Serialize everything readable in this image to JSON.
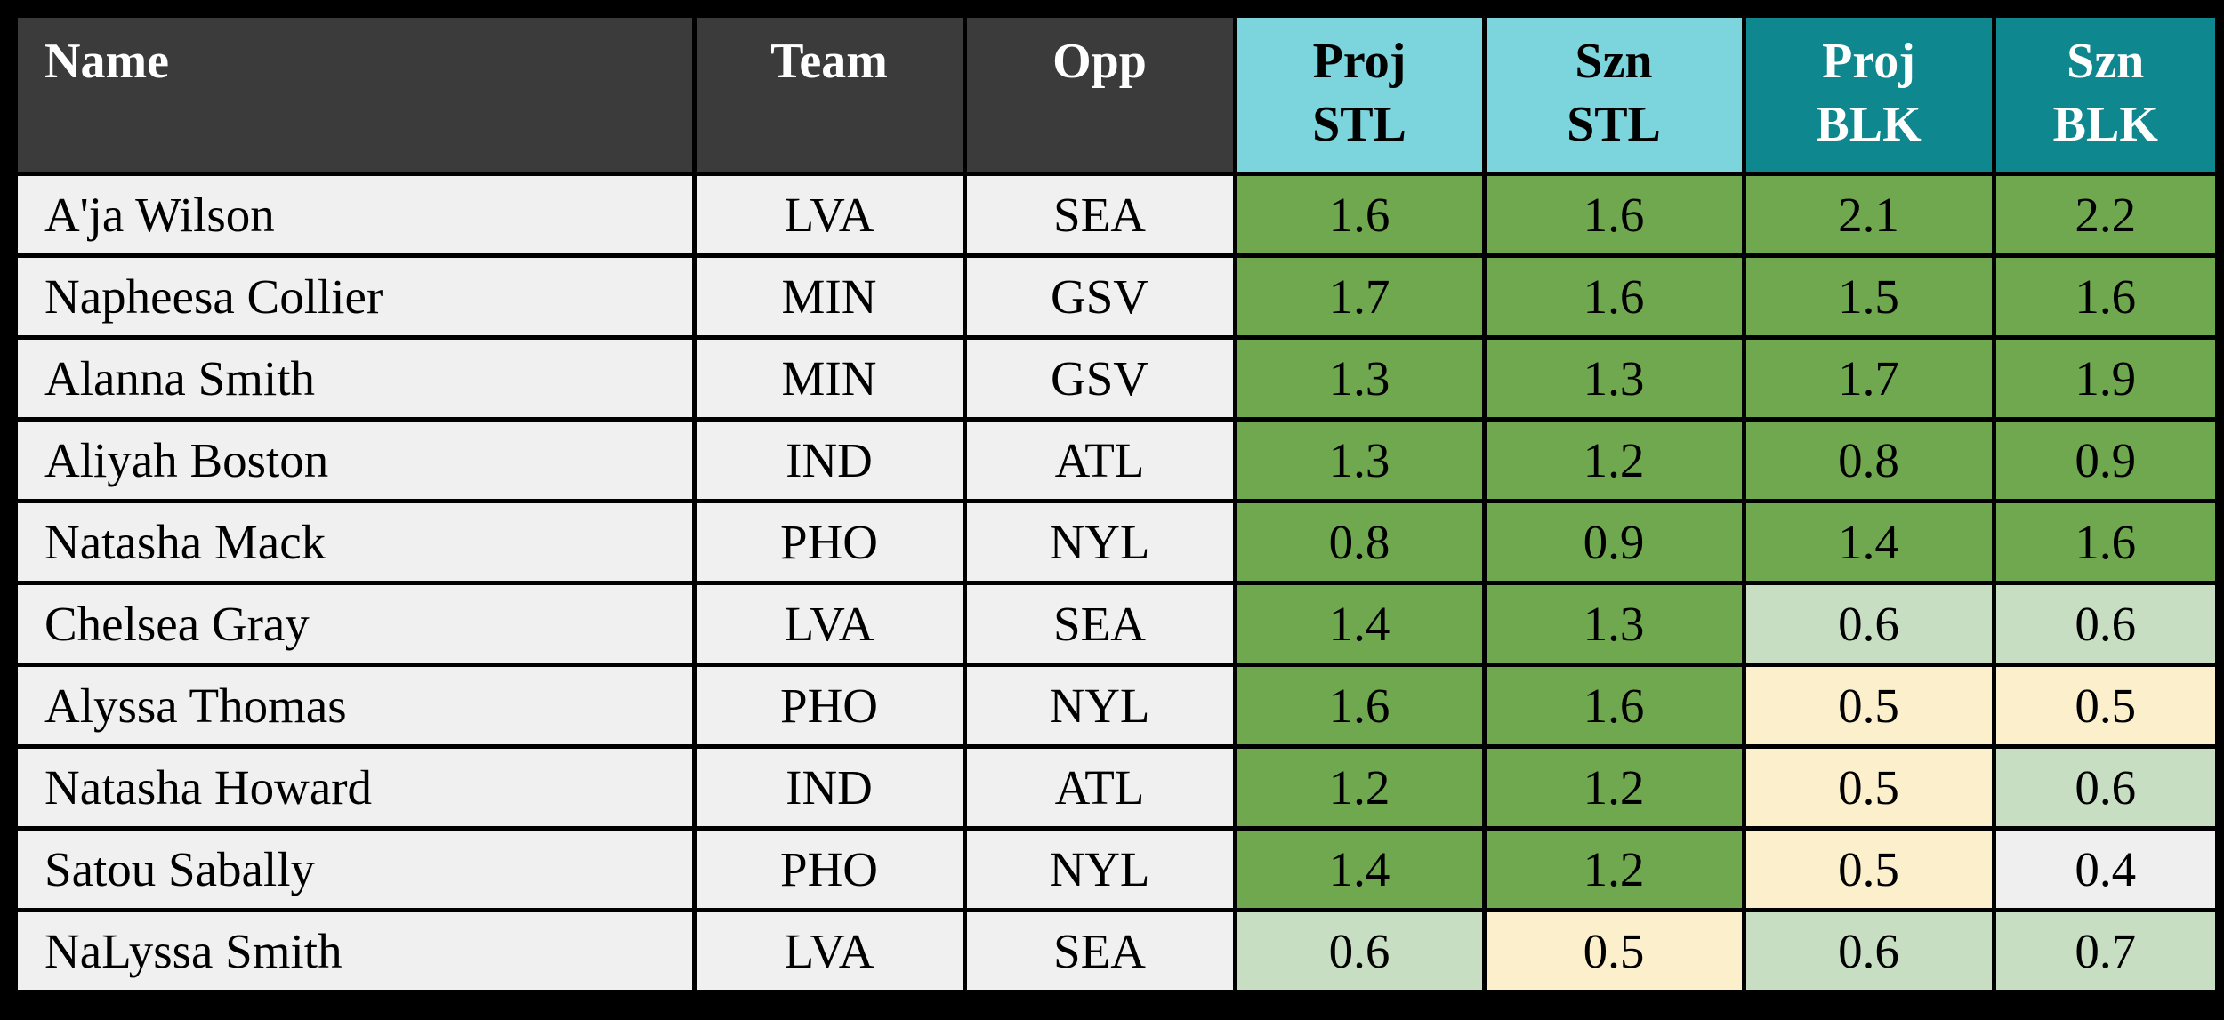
{
  "colors": {
    "page_bg": "#000000",
    "border": "#000000",
    "header_dark": "#3b3b3b",
    "header_cyan": "#7cd5dc",
    "header_teal": "#0f878e",
    "cell_green": "#6fa84f",
    "cell_lightgreen": "#c8dec2",
    "cell_cream": "#fbf0cb",
    "cell_gray": "#efefef",
    "row_bg": "#f0f0f0",
    "body_text": "#000000",
    "header_light_text": "#ffffff"
  },
  "table": {
    "headers": [
      {
        "label": "Name",
        "style": "dark",
        "align": "left"
      },
      {
        "label": "Team",
        "style": "dark",
        "align": "center"
      },
      {
        "label": "Opp",
        "style": "dark",
        "align": "center"
      },
      {
        "label": "Proj\nSTL",
        "style": "cyan",
        "align": "center"
      },
      {
        "label": "Szn\nSTL",
        "style": "cyan",
        "align": "center"
      },
      {
        "label": "Proj\nBLK",
        "style": "teal",
        "align": "center"
      },
      {
        "label": "Szn\nBLK",
        "style": "teal",
        "align": "center"
      }
    ]
  },
  "chart_data": {
    "type": "table",
    "columns": [
      "Name",
      "Team",
      "Opp",
      "Proj STL",
      "Szn STL",
      "Proj BLK",
      "Szn BLK"
    ],
    "rows": [
      {
        "name": "A'ja Wilson",
        "team": "LVA",
        "opp": "SEA",
        "proj_stl": 1.6,
        "szn_stl": 1.6,
        "proj_blk": 2.1,
        "szn_blk": 2.2,
        "cell_tones": [
          "green",
          "green",
          "green",
          "green"
        ]
      },
      {
        "name": "Napheesa Collier",
        "team": "MIN",
        "opp": "GSV",
        "proj_stl": 1.7,
        "szn_stl": 1.6,
        "proj_blk": 1.5,
        "szn_blk": 1.6,
        "cell_tones": [
          "green",
          "green",
          "green",
          "green"
        ]
      },
      {
        "name": "Alanna Smith",
        "team": "MIN",
        "opp": "GSV",
        "proj_stl": 1.3,
        "szn_stl": 1.3,
        "proj_blk": 1.7,
        "szn_blk": 1.9,
        "cell_tones": [
          "green",
          "green",
          "green",
          "green"
        ]
      },
      {
        "name": "Aliyah Boston",
        "team": "IND",
        "opp": "ATL",
        "proj_stl": 1.3,
        "szn_stl": 1.2,
        "proj_blk": 0.8,
        "szn_blk": 0.9,
        "cell_tones": [
          "green",
          "green",
          "green",
          "green"
        ]
      },
      {
        "name": "Natasha Mack",
        "team": "PHO",
        "opp": "NYL",
        "proj_stl": 0.8,
        "szn_stl": 0.9,
        "proj_blk": 1.4,
        "szn_blk": 1.6,
        "cell_tones": [
          "green",
          "green",
          "green",
          "green"
        ]
      },
      {
        "name": "Chelsea Gray",
        "team": "LVA",
        "opp": "SEA",
        "proj_stl": 1.4,
        "szn_stl": 1.3,
        "proj_blk": 0.6,
        "szn_blk": 0.6,
        "cell_tones": [
          "green",
          "green",
          "lightgreen",
          "lightgreen"
        ]
      },
      {
        "name": "Alyssa Thomas",
        "team": "PHO",
        "opp": "NYL",
        "proj_stl": 1.6,
        "szn_stl": 1.6,
        "proj_blk": 0.5,
        "szn_blk": 0.5,
        "cell_tones": [
          "green",
          "green",
          "cream",
          "cream"
        ]
      },
      {
        "name": "Natasha Howard",
        "team": "IND",
        "opp": "ATL",
        "proj_stl": 1.2,
        "szn_stl": 1.2,
        "proj_blk": 0.5,
        "szn_blk": 0.6,
        "cell_tones": [
          "green",
          "green",
          "cream",
          "lightgreen"
        ]
      },
      {
        "name": "Satou Sabally",
        "team": "PHO",
        "opp": "NYL",
        "proj_stl": 1.4,
        "szn_stl": 1.2,
        "proj_blk": 0.5,
        "szn_blk": 0.4,
        "cell_tones": [
          "green",
          "green",
          "cream",
          "gray"
        ]
      },
      {
        "name": "NaLyssa Smith",
        "team": "LVA",
        "opp": "SEA",
        "proj_stl": 0.6,
        "szn_stl": 0.5,
        "proj_blk": 0.6,
        "szn_blk": 0.7,
        "cell_tones": [
          "lightgreen",
          "cream",
          "lightgreen",
          "lightgreen"
        ]
      }
    ]
  }
}
